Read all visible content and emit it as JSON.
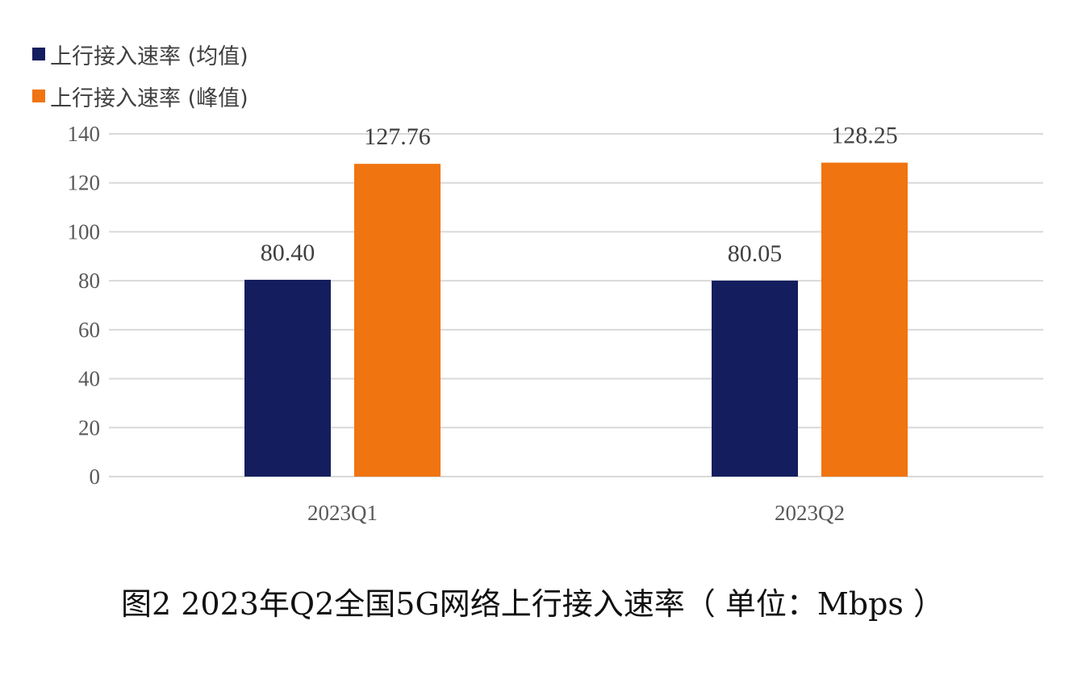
{
  "chart_data": {
    "type": "bar",
    "categories": [
      "2023Q1",
      "2023Q2"
    ],
    "series": [
      {
        "name": "上行接入速率 (均值)",
        "values": [
          80.4,
          80.05
        ],
        "labels": [
          "80.40",
          "80.05"
        ],
        "color": "#141E5E"
      },
      {
        "name": "上行接入速率 (峰值)",
        "values": [
          127.76,
          128.25
        ],
        "labels": [
          "127.76",
          "128.25"
        ],
        "color": "#F07410"
      }
    ],
    "ylim": [
      0,
      140
    ],
    "yticks": [
      0,
      20,
      40,
      60,
      80,
      100,
      120,
      140
    ],
    "grid": true,
    "legend_position": "top-left",
    "title": "",
    "xlabel": "",
    "ylabel": "",
    "colors": {
      "grid": "#D9D9D9",
      "axis_text": "#595959",
      "label_text": "#404040"
    }
  },
  "caption": "图2 2023年Q2全国5G网络上行接入速率（ 单位：Mbps ）"
}
